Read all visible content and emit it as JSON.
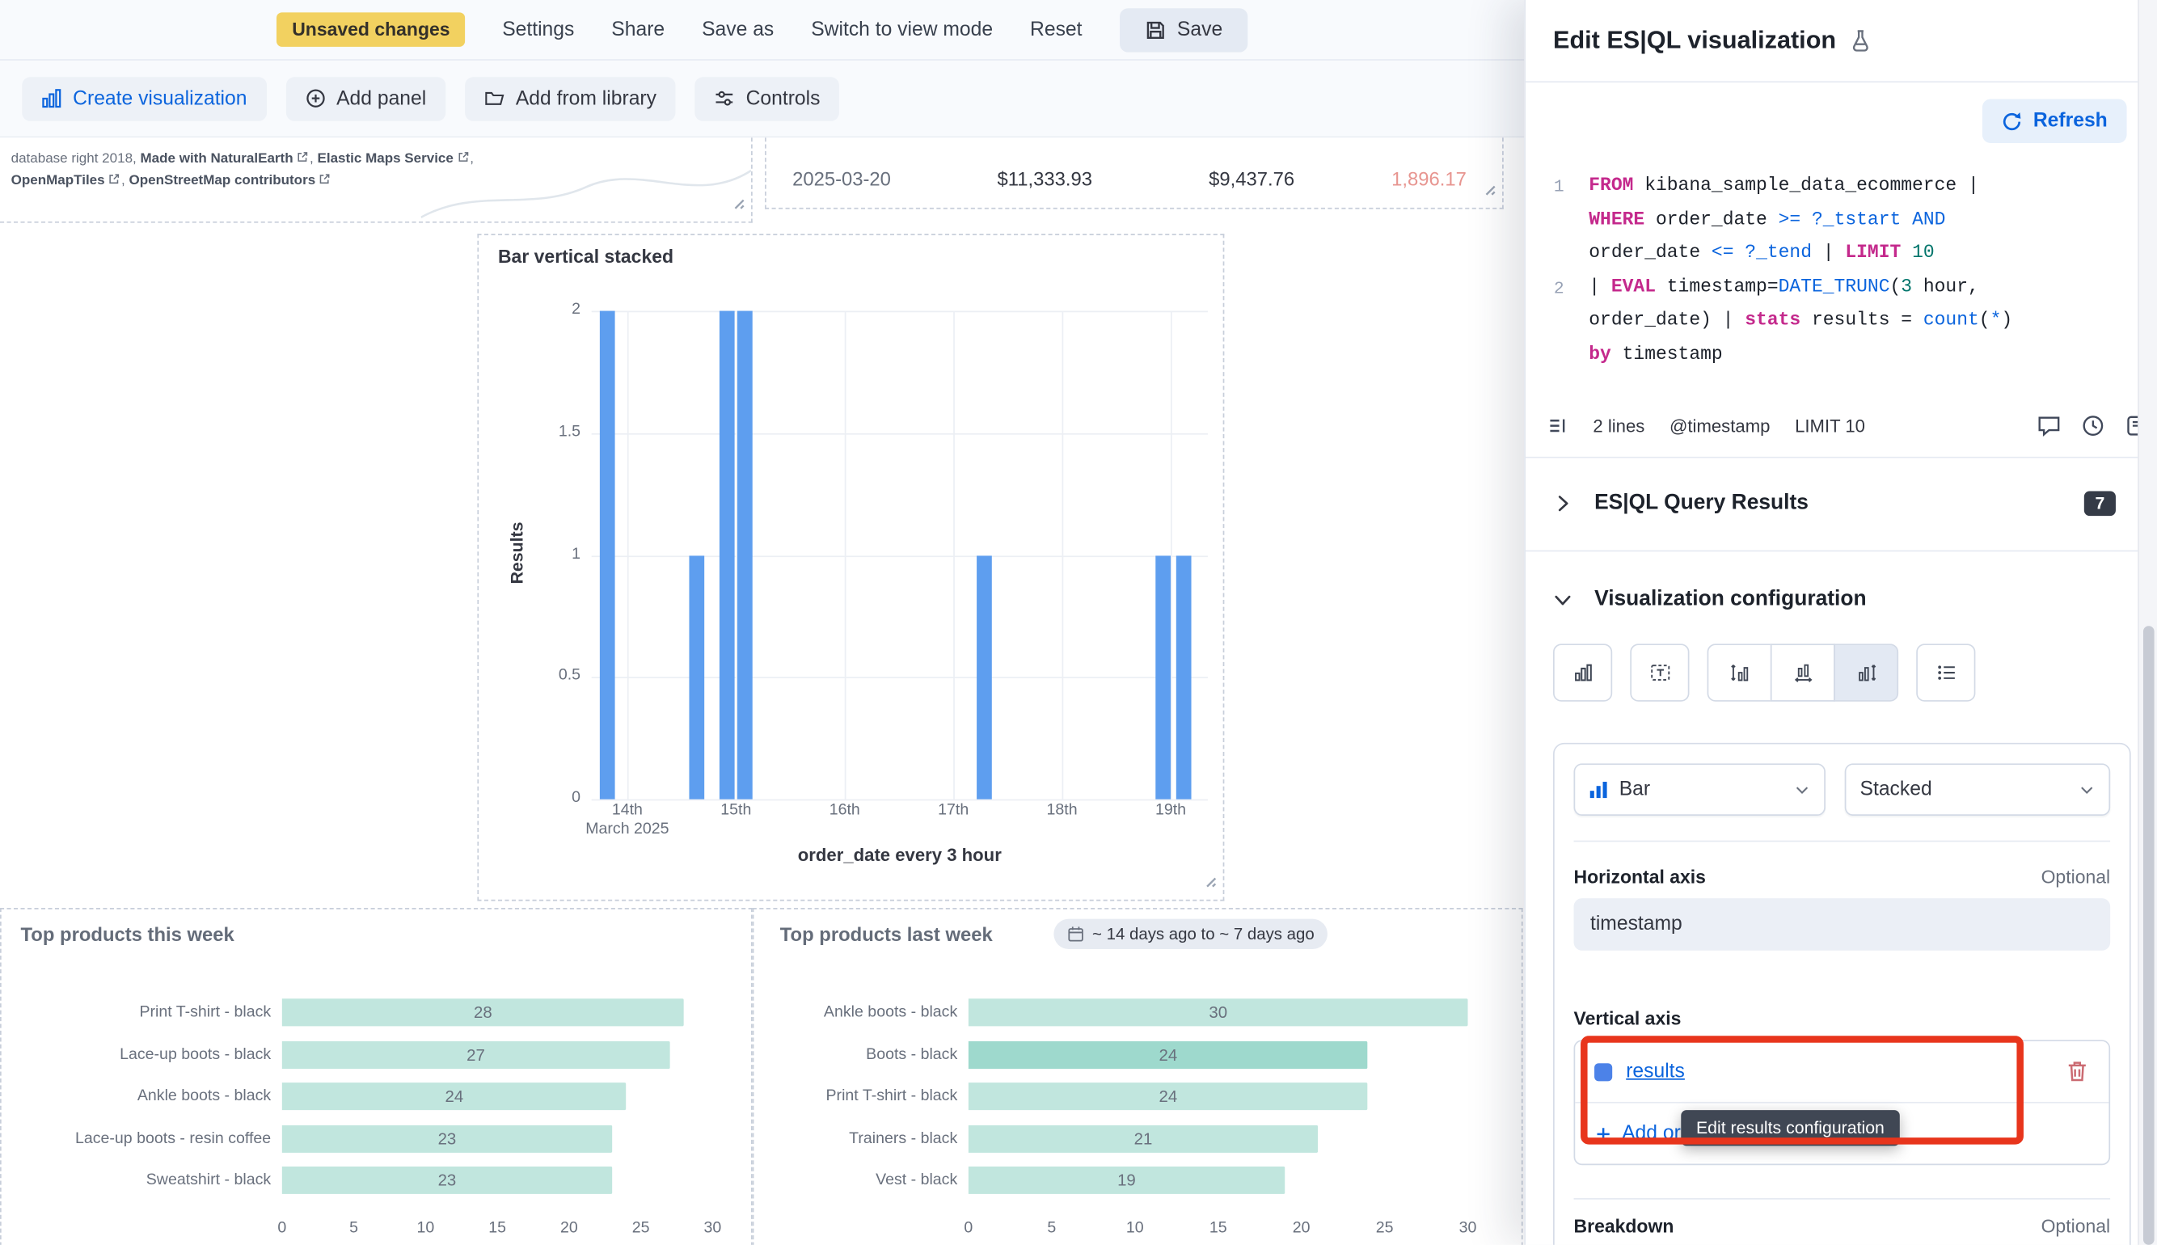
{
  "colors": {
    "accent_blue": "#0B64DD",
    "bar_blue": "#5E9EEF",
    "teal_bar": "#C1E6DE",
    "teal_bar_highlight": "#9ED9CD",
    "warning_badge": "#F2D160",
    "annotation_red": "#E8351C",
    "keyword_magenta": "#C4298C",
    "number_teal": "#00756B",
    "negative_red": "#E0726B"
  },
  "top_bar": {
    "unsaved_badge": "Unsaved changes",
    "settings": "Settings",
    "share": "Share",
    "save_as": "Save as",
    "switch_view": "Switch to view mode",
    "reset": "Reset",
    "save": "Save"
  },
  "toolbar": {
    "create_visualization": "Create visualization",
    "add_panel": "Add panel",
    "add_from_library": "Add from library",
    "controls": "Controls"
  },
  "map_panel": {
    "prefix": "database right 2018, ",
    "link1": "Made with NaturalEarth",
    "sep1": ", ",
    "link2": "Elastic Maps Service",
    "sep2": ",",
    "link3": "OpenMapTiles",
    "sep3": ", ",
    "link4": "OpenStreetMap contributors"
  },
  "table_panel": {
    "date": "2025-03-20",
    "value1": "$11,333.93",
    "value2": "$9,437.76",
    "value3": "1,896.17"
  },
  "chart_data": [
    {
      "type": "bar",
      "title": "Bar vertical stacked",
      "xlabel": "order_date every 3 hour",
      "ylabel": "Results",
      "ylim": [
        0,
        2
      ],
      "yticks": [
        0,
        0.5,
        1,
        1.5,
        2
      ],
      "xticks": [
        "14th",
        "15th",
        "16th",
        "17th",
        "18th",
        "19th"
      ],
      "xtick_sub": "March 2025",
      "bar_color": "#5E9EEF",
      "points": [
        {
          "time": "2025-03-13 21:00",
          "value": 2,
          "f": 0.026
        },
        {
          "time": "2025-03-14 15:00",
          "value": 1,
          "f": 0.171
        },
        {
          "time": "2025-03-14 21:00",
          "value": 2,
          "f": 0.219
        },
        {
          "time": "2025-03-15 03:00",
          "value": 2,
          "f": 0.248
        },
        {
          "time": "2025-03-17 06:00",
          "value": 1,
          "f": 0.638
        },
        {
          "time": "2025-03-18 21:00",
          "value": 1,
          "f": 0.928
        },
        {
          "time": "2025-03-19 03:00",
          "value": 1,
          "f": 0.96
        }
      ]
    },
    {
      "type": "bar",
      "orientation": "horizontal",
      "title": "Top products this week",
      "categories": [
        "Print T-shirt - black",
        "Lace-up boots - black",
        "Ankle boots - black",
        "Lace-up boots - resin coffee",
        "Sweatshirt - black"
      ],
      "values": [
        28,
        27,
        24,
        23,
        23
      ],
      "xticks": [
        0,
        5,
        10,
        15,
        20,
        25,
        30
      ],
      "xlim": [
        0,
        30
      ],
      "bar_color": "#C1E6DE"
    },
    {
      "type": "bar",
      "orientation": "horizontal",
      "title": "Top products last week",
      "time_badge": "~ 14 days ago to ~ 7 days ago",
      "categories": [
        "Ankle boots - black",
        "Boots - black",
        "Print T-shirt - black",
        "Trainers - black",
        "Vest - black"
      ],
      "values": [
        30,
        24,
        24,
        21,
        19
      ],
      "xticks": [
        0,
        5,
        10,
        15,
        20,
        25,
        30
      ],
      "xlim": [
        0,
        30
      ],
      "bar_color": "#C1E6DE",
      "bar_colors": [
        "#C1E6DE",
        "#9ED9CD",
        "#C1E6DE",
        "#C1E6DE",
        "#C1E6DE"
      ]
    }
  ],
  "flyout": {
    "title": "Edit ES|QL visualization",
    "refresh": "Refresh",
    "editor": {
      "lines": [
        {
          "num": "1",
          "tokens": [
            {
              "s": "FROM",
              "c": "k"
            },
            {
              "s": " kibana_sample_data_ecommerce |",
              "c": "t"
            },
            {
              "br": true
            },
            {
              "s": "WHERE",
              "c": "k"
            },
            {
              "s": " order_date ",
              "c": "t"
            },
            {
              "s": ">=",
              "c": "p"
            },
            {
              "s": " ",
              "c": "t"
            },
            {
              "s": "?_tstart",
              "c": "p"
            },
            {
              "s": " ",
              "c": "t"
            },
            {
              "s": "AND",
              "c": "p"
            },
            {
              "br": true
            },
            {
              "s": "order_date ",
              "c": "t"
            },
            {
              "s": "<=",
              "c": "p"
            },
            {
              "s": " ",
              "c": "t"
            },
            {
              "s": "?_tend",
              "c": "p"
            },
            {
              "s": " | ",
              "c": "t"
            },
            {
              "s": "LIMIT",
              "c": "k"
            },
            {
              "s": " ",
              "c": "t"
            },
            {
              "s": "10",
              "c": "n"
            }
          ]
        },
        {
          "num": "2",
          "tokens": [
            {
              "s": "| ",
              "c": "t"
            },
            {
              "s": "EVAL",
              "c": "k"
            },
            {
              "s": " timestamp=",
              "c": "t"
            },
            {
              "s": "DATE_TRUNC",
              "c": "f"
            },
            {
              "s": "(",
              "c": "t"
            },
            {
              "s": "3",
              "c": "n"
            },
            {
              "s": " hour,",
              "c": "t"
            },
            {
              "br": true
            },
            {
              "s": "order_date) | ",
              "c": "t"
            },
            {
              "s": "stats",
              "c": "k"
            },
            {
              "s": " results = ",
              "c": "t"
            },
            {
              "s": "count",
              "c": "f"
            },
            {
              "s": "(",
              "c": "t"
            },
            {
              "s": "*",
              "c": "p"
            },
            {
              "s": ")",
              "c": "t"
            },
            {
              "br": true
            },
            {
              "s": "by",
              "c": "k"
            },
            {
              "s": " timestamp",
              "c": "t"
            }
          ]
        }
      ],
      "footer": {
        "lines_count": "2 lines",
        "timestamp": "@timestamp",
        "limit": "LIMIT 10"
      }
    },
    "results_section": {
      "title": "ES|QL Query Results",
      "badge": "7"
    },
    "config_section": {
      "title": "Visualization configuration",
      "chart_type": "Bar",
      "stack_mode": "Stacked",
      "horizontal_axis_label": "Horizontal axis",
      "horizontal_axis_optional": "Optional",
      "horizontal_axis_value": "timestamp",
      "vertical_axis_label": "Vertical axis",
      "vertical_field": "results",
      "add_field": "Add or drag-and-drop a field",
      "tooltip": "Edit results configuration",
      "breakdown_label": "Breakdown",
      "breakdown_optional": "Optional"
    }
  }
}
